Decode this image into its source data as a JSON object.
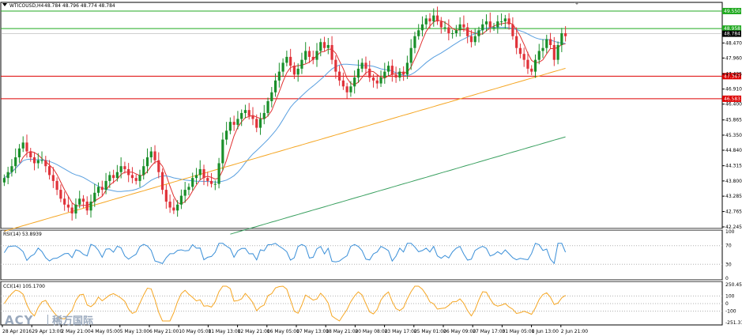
{
  "header": {
    "symbol": "WTICOUSD,H4",
    "ohlc": "48.784 48.796 48.774 48.784"
  },
  "logo": {
    "brand": "ACY",
    "cn": "稀万国际"
  },
  "colors": {
    "bg": "#ffffff",
    "bull": "#1a8f2a",
    "bear": "#e0333a",
    "ma_fast": "#e03030",
    "ma_mid": "#5aa0e0",
    "ma_slow": "#f5a623",
    "ma_long": "#3aa060",
    "level_green": "#22aa22",
    "level_red": "#dd0000",
    "rsi_line": "#3a8fd8",
    "cci_line": "#f5a623"
  },
  "chart_data": [
    {
      "type": "candlestick",
      "title": "WTICOUSD,H4",
      "ylim": [
        42.245,
        49.55
      ],
      "y_ticks": [
        "49.550",
        "48.470",
        "47.960",
        "47.425",
        "46.910",
        "46.400",
        "45.865",
        "45.350",
        "44.840",
        "44.315",
        "43.800",
        "43.285",
        "42.765",
        "42.245"
      ],
      "x_ticks": [
        "28 Apr 2016",
        "29 Apr 13:00",
        "2 May 21:00",
        "4 May 05:00",
        "5 May 13:00",
        "6 May 21:00",
        "10 May 05:00",
        "11 May 13:00",
        "12 May 21:00",
        "16 May 05:00",
        "17 May 13:00",
        "18 May 21:00",
        "20 May 08:00",
        "23 May 17:00",
        "25 May 01:00",
        "26 May 09:00",
        "27 May 17:00",
        "31 May 05:00",
        "1 Jun 13:00",
        "2 Jun 21:00"
      ],
      "levels": [
        {
          "value": 49.55,
          "label": "49.550",
          "color": "green"
        },
        {
          "value": 48.958,
          "label": "48.958",
          "color": "green"
        },
        {
          "value": 48.784,
          "label": "48.784",
          "color": "gray"
        },
        {
          "value": 47.347,
          "label": "47.347",
          "color": "red"
        },
        {
          "value": 46.583,
          "label": "46.583",
          "color": "red"
        }
      ],
      "close": [
        43.9,
        44.1,
        44.3,
        44.6,
        44.9,
        45.1,
        44.8,
        44.6,
        44.4,
        44.5,
        44.5,
        44.3,
        44.0,
        43.8,
        43.5,
        43.2,
        43.0,
        42.9,
        42.7,
        43.0,
        43.2,
        43.1,
        42.8,
        43.1,
        43.4,
        43.6,
        43.5,
        43.8,
        44.0,
        43.9,
        44.1,
        44.3,
        44.2,
        44.0,
        43.9,
        43.8,
        44.0,
        44.3,
        44.6,
        44.8,
        44.5,
        44.1,
        43.5,
        43.1,
        42.9,
        42.8,
        43.0,
        43.3,
        43.5,
        43.6,
        43.9,
        44.0,
        44.2,
        43.9,
        43.8,
        43.7,
        43.7,
        44.4,
        45.2,
        45.5,
        45.8,
        45.7,
        45.9,
        46.1,
        46.2,
        46.0,
        45.9,
        45.6,
        45.9,
        46.1,
        46.5,
        46.8,
        47.2,
        47.5,
        47.8,
        48.0,
        47.7,
        47.4,
        47.6,
        47.9,
        48.2,
        48.0,
        47.9,
        48.2,
        48.5,
        48.3,
        48.4,
        47.9,
        47.5,
        47.2,
        47.0,
        46.8,
        47.0,
        47.3,
        47.6,
        47.8,
        47.6,
        47.3,
        47.2,
        47.1,
        47.3,
        47.5,
        47.7,
        47.4,
        47.3,
        47.5,
        47.4,
        47.8,
        48.3,
        48.7,
        48.9,
        49.1,
        49.3,
        49.2,
        49.4,
        49.2,
        49.0,
        49.0,
        48.8,
        48.8,
        48.9,
        49.1,
        49.0,
        48.7,
        48.5,
        48.7,
        48.9,
        49.1,
        49.2,
        49.0,
        49.0,
        49.2,
        49.2,
        49.3,
        49.1,
        48.7,
        48.3,
        48.1,
        47.9,
        47.6,
        47.5,
        47.9,
        48.2,
        48.3,
        48.6,
        48.4,
        47.9,
        48.4,
        48.8,
        48.7
      ]
    },
    {
      "type": "line",
      "title": "RSI(14) 53.8939",
      "ylim": [
        0,
        100
      ],
      "y_ticks": [
        "100",
        "70",
        "30",
        "0"
      ]
    },
    {
      "type": "line",
      "title": "CCI(14) 105.1700",
      "ylim": [
        -251.3136,
        250.4562
      ],
      "y_ticks": [
        "250.4562",
        "100",
        "0",
        "-100",
        "-251.3136"
      ]
    }
  ]
}
